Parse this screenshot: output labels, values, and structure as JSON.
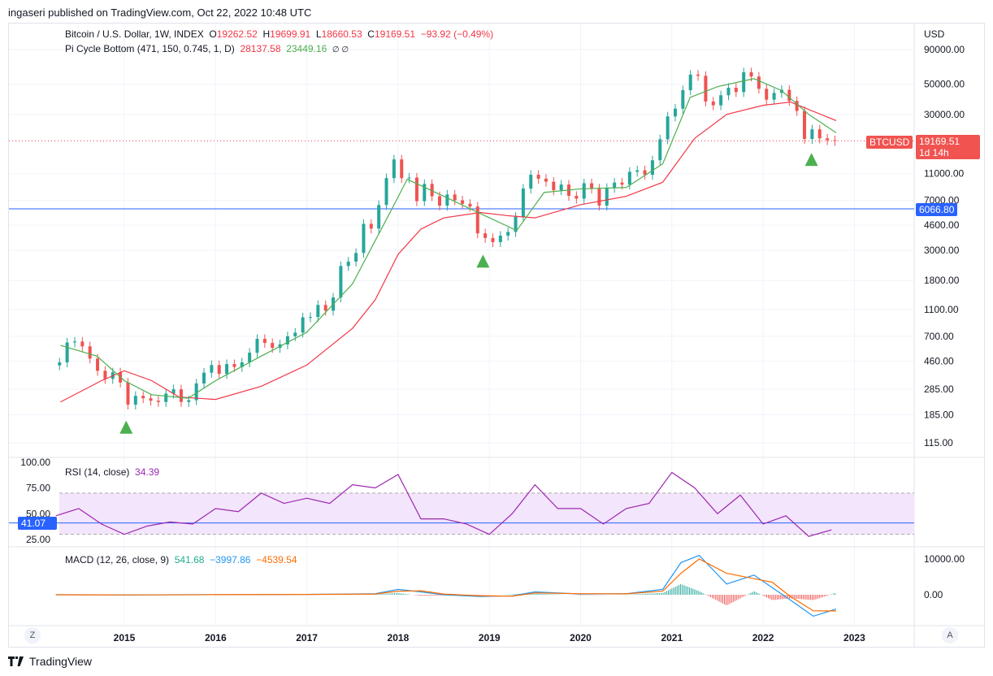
{
  "header": {
    "published": "ingaseri published on TradingView.com, Oct 22, 2022 10:48 UTC"
  },
  "legend": {
    "symbol": "Bitcoin / U.S. Dollar, 1W, INDEX",
    "o_label": "O",
    "open": "19262.52",
    "h_label": "H",
    "high": "19699.91",
    "l_label": "L",
    "low": "18660.53",
    "c_label": "C",
    "close": "19169.51",
    "change": "−93.92 (−0.49%)",
    "indicator": "Pi Cycle Bottom (471, 150, 0.745, 1, D)",
    "ind_v1": "28137.58",
    "ind_v2": "23449.16",
    "ind_na": "∅ ∅"
  },
  "rsi_legend": {
    "name": "RSI (14, close)",
    "value": "34.39"
  },
  "macd_legend": {
    "name": "MACD (12, 26, close, 9)",
    "hist": "541.68",
    "macd": "−3997.86",
    "signal": "−4539.54"
  },
  "price_axis": {
    "unit": "USD",
    "ticks": [
      "90000.00",
      "50000.00",
      "30000.00",
      "11000.00",
      "7000.00",
      "4600.00",
      "3000.00",
      "1800.00",
      "1100.00",
      "700.00",
      "460.00",
      "285.00",
      "185.00",
      "115.00"
    ],
    "last_symbol": "BTCUSD",
    "last_price": "19169.51",
    "countdown": "1d 14h",
    "hline_label": "6066.80"
  },
  "rsi_axis": {
    "ticks": [
      "100.00",
      "75.00",
      "50.00",
      "25.00"
    ],
    "hline_label": "41.07"
  },
  "macd_axis": {
    "ticks": [
      "10000.00",
      "0.00"
    ]
  },
  "time_axis": {
    "ticks": [
      "2015",
      "2016",
      "2017",
      "2018",
      "2019",
      "2020",
      "2021",
      "2022",
      "2023"
    ],
    "left_btn": "Z",
    "right_btn": "A"
  },
  "brand": "TradingView",
  "chart_data": [
    {
      "type": "candlestick",
      "scale": "log",
      "ylabel": "USD",
      "ylim": [
        100,
        100000
      ],
      "xlim": [
        2014.2,
        2023.7
      ],
      "monthly_close": {
        "start": 2014.29,
        "step": 0.0833,
        "values": [
          450,
          630,
          640,
          590,
          480,
          390,
          340,
          380,
          320,
          220,
          255,
          245,
          235,
          230,
          265,
          285,
          230,
          237,
          315,
          378,
          430,
          370,
          437,
          416,
          450,
          530,
          670,
          625,
          575,
          610,
          700,
          745,
          965,
          970,
          1190,
          1080,
          1350,
          2300,
          2480,
          2870,
          4700,
          4340,
          6470,
          10200,
          14000,
          10200,
          10300,
          6900,
          9250,
          7500,
          6400,
          7730,
          7000,
          6600,
          6300,
          4000,
          3700,
          3450,
          3850,
          4100,
          5300,
          8550,
          10800,
          10100,
          9600,
          8300,
          9150,
          7550,
          7200,
          9350,
          8550,
          6400,
          8650,
          9450,
          9140,
          11350,
          11650,
          10780,
          13800,
          19700,
          29000,
          33100,
          45200,
          58900,
          57700,
          37300,
          35000,
          41500,
          47100,
          43800,
          61300,
          57000,
          46300,
          38500,
          43200,
          45500,
          37700,
          31800,
          19800,
          23300,
          20000,
          19400,
          19170
        ]
      },
      "pi_cycle_red": {
        "x": [
          2014.3,
          2014.75,
          2015.0,
          2015.3,
          2015.6,
          2016.0,
          2016.5,
          2017.0,
          2017.5,
          2017.75,
          2018.0,
          2018.25,
          2018.5,
          2018.9,
          2019.2,
          2019.5,
          2020.0,
          2020.5,
          2020.9,
          2021.25,
          2021.6,
          2022.0,
          2022.3,
          2022.8
        ],
        "y": [
          230,
          330,
          390,
          330,
          250,
          240,
          300,
          430,
          800,
          1300,
          2800,
          4300,
          5200,
          5700,
          5400,
          5200,
          6500,
          7500,
          9500,
          20000,
          30000,
          35000,
          37000,
          27000
        ]
      },
      "pi_cycle_green": {
        "x": [
          2014.3,
          2014.7,
          2015.0,
          2015.3,
          2015.7,
          2016.0,
          2016.5,
          2017.0,
          2017.5,
          2017.9,
          2018.1,
          2018.5,
          2018.9,
          2019.3,
          2019.6,
          2020.0,
          2020.5,
          2020.9,
          2021.2,
          2021.5,
          2021.9,
          2022.2,
          2022.5,
          2022.8
        ],
        "y": [
          600,
          500,
          330,
          260,
          245,
          330,
          500,
          750,
          1700,
          5500,
          10000,
          7500,
          5600,
          4200,
          8000,
          8500,
          8700,
          13000,
          40000,
          48000,
          55000,
          45000,
          30000,
          22000
        ]
      },
      "signals": [
        {
          "x": 2015.02,
          "y": 150
        },
        {
          "x": 2018.93,
          "y": 2500
        },
        {
          "x": 2022.53,
          "y": 14000
        }
      ],
      "hline": 6066.8,
      "last": 19169.51,
      "colors": {
        "up": "#26a69a",
        "down": "#ef5350",
        "red_line": "#f23645",
        "green_line": "#4caf50",
        "signal": "#4caf50",
        "hline": "#2962ff"
      }
    },
    {
      "type": "line",
      "name": "RSI (14, close)",
      "ylim": [
        20,
        100
      ],
      "band": [
        30,
        70
      ],
      "hline": 41.07,
      "x": [
        2014.25,
        2014.5,
        2014.75,
        2015.0,
        2015.25,
        2015.5,
        2015.75,
        2016.0,
        2016.25,
        2016.5,
        2016.75,
        2017.0,
        2017.25,
        2017.5,
        2017.75,
        2018.0,
        2018.25,
        2018.5,
        2018.75,
        2019.0,
        2019.25,
        2019.5,
        2019.75,
        2020.0,
        2020.25,
        2020.5,
        2020.75,
        2021.0,
        2021.25,
        2021.5,
        2021.75,
        2022.0,
        2022.25,
        2022.5,
        2022.75
      ],
      "y": [
        48,
        55,
        40,
        30,
        38,
        42,
        40,
        55,
        52,
        70,
        60,
        65,
        60,
        78,
        75,
        88,
        45,
        45,
        40,
        30,
        50,
        78,
        55,
        55,
        40,
        55,
        60,
        90,
        75,
        50,
        68,
        40,
        48,
        28,
        34.39
      ],
      "color": "#9c27b0"
    },
    {
      "type": "line",
      "name": "MACD (12, 26, close, 9)",
      "x": [
        2014.25,
        2015.0,
        2016.0,
        2017.0,
        2017.5,
        2017.75,
        2018.0,
        2018.25,
        2018.5,
        2018.9,
        2019.25,
        2019.5,
        2020.0,
        2020.5,
        2020.9,
        2021.1,
        2021.3,
        2021.6,
        2021.9,
        2022.1,
        2022.3,
        2022.55,
        2022.8
      ],
      "macd": [
        0,
        -50,
        30,
        100,
        200,
        300,
        1500,
        800,
        0,
        -500,
        -300,
        800,
        200,
        300,
        1500,
        9000,
        11000,
        3000,
        5500,
        2000,
        -1500,
        -6000,
        -3997.86
      ],
      "signal": [
        0,
        -40,
        20,
        80,
        150,
        200,
        1000,
        1100,
        200,
        -300,
        -400,
        500,
        300,
        250,
        1000,
        6000,
        10000,
        6000,
        4500,
        3500,
        -500,
        -4500,
        -4539.54
      ],
      "colors": {
        "macd": "#2196f3",
        "signal": "#ff6d00",
        "hist_up": "#26a69a",
        "hist_down": "#ef5350"
      }
    }
  ]
}
